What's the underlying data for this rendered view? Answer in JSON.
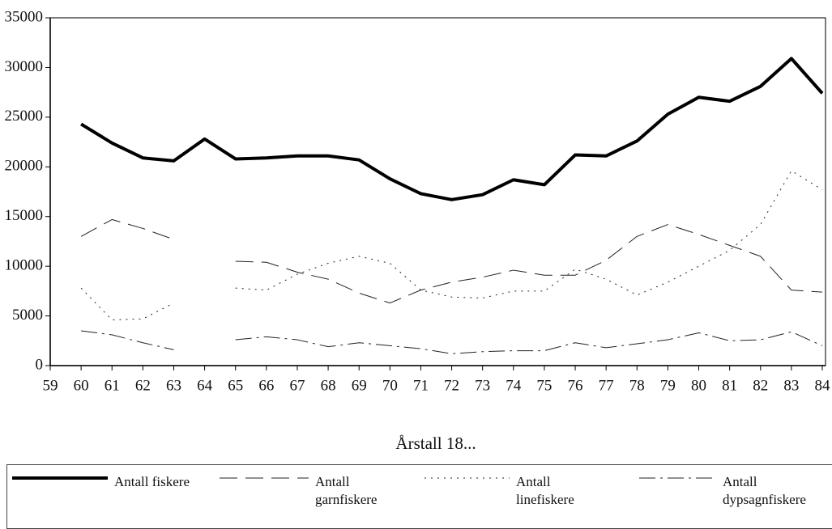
{
  "chart_data": {
    "type": "line",
    "x_label": "Årstall 18...",
    "x": [
      59,
      60,
      61,
      62,
      63,
      64,
      65,
      66,
      67,
      68,
      69,
      70,
      71,
      72,
      73,
      74,
      75,
      76,
      77,
      78,
      79,
      80,
      81,
      82,
      83,
      84
    ],
    "xlim": [
      59,
      84
    ],
    "xticks": [
      59,
      60,
      61,
      62,
      63,
      64,
      65,
      66,
      67,
      68,
      69,
      70,
      71,
      72,
      73,
      74,
      75,
      76,
      77,
      78,
      79,
      80,
      81,
      82,
      83,
      84
    ],
    "ylim": [
      0,
      35000
    ],
    "yticks": [
      0,
      5000,
      10000,
      15000,
      20000,
      25000,
      30000,
      35000
    ],
    "grid": false,
    "legend": "bottom",
    "series": [
      {
        "name": "Antall fiskere",
        "color": "#000000",
        "dash": "solid",
        "width": 4,
        "values": [
          null,
          24300,
          22400,
          20900,
          20600,
          22800,
          20800,
          20900,
          21100,
          21100,
          20700,
          18800,
          17300,
          16700,
          17200,
          18700,
          18200,
          21200,
          21100,
          22600,
          25300,
          27000,
          26600,
          28100,
          30900,
          27400
        ]
      },
      {
        "name": "Antall garnfiskere",
        "color": "#222222",
        "dash": "long-dash",
        "width": 1,
        "values": [
          null,
          13000,
          14700,
          13800,
          12700,
          null,
          10500,
          10400,
          9400,
          8700,
          7300,
          6300,
          7600,
          8400,
          8900,
          9600,
          9100,
          9100,
          10600,
          13000,
          14200,
          13200,
          12100,
          11000,
          7600,
          7400
        ]
      },
      {
        "name": "Antall linefiskere",
        "color": "#222222",
        "dash": "dotted",
        "width": 1,
        "values": [
          null,
          7800,
          4600,
          4700,
          6300,
          null,
          7800,
          7600,
          9200,
          10300,
          11000,
          10300,
          7600,
          6900,
          6800,
          7500,
          7500,
          9700,
          8700,
          7100,
          8400,
          10000,
          11600,
          14200,
          19600,
          17700
        ]
      },
      {
        "name": "Antall dypsagnfiskere",
        "color": "#222222",
        "dash": "dash-dot",
        "width": 1,
        "values": [
          null,
          3500,
          3100,
          2300,
          1600,
          null,
          2600,
          2900,
          2600,
          1900,
          2300,
          2000,
          1700,
          1200,
          1400,
          1500,
          1500,
          2300,
          1800,
          2200,
          2600,
          3300,
          2500,
          2600,
          3400,
          2000
        ]
      }
    ]
  }
}
